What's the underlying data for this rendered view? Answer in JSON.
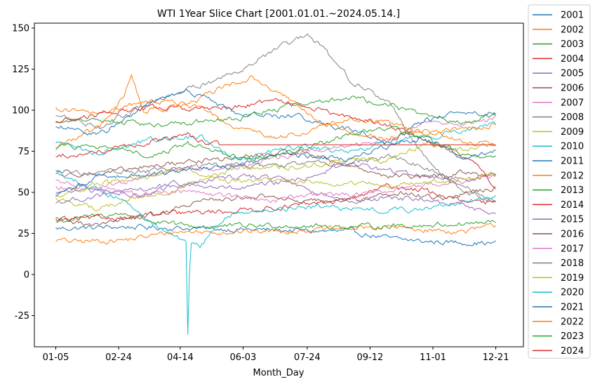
{
  "chart_data": {
    "type": "line",
    "title": "WTI 1Year Slice Chart [2001.01.01.~2024.05.14.]",
    "xlabel": "Month_Day",
    "ylabel": "",
    "x_ticks": [
      "01-05",
      "02-24",
      "04-14",
      "06-03",
      "07-24",
      "09-12",
      "11-01",
      "12-21"
    ],
    "x_tick_days": [
      5,
      55,
      104,
      154,
      205,
      255,
      305,
      355
    ],
    "xlim": [
      -12,
      377
    ],
    "ylim": [
      -44,
      153
    ],
    "y_ticks": [
      -25,
      0,
      25,
      50,
      75,
      100,
      125,
      150
    ],
    "grid": false,
    "legend_position": "outside-right",
    "series": [
      {
        "name": "2001",
        "color": "#1f77b4",
        "keypoints": [
          [
            5,
            28
          ],
          [
            60,
            29
          ],
          [
            120,
            28
          ],
          [
            180,
            27
          ],
          [
            240,
            26
          ],
          [
            270,
            22
          ],
          [
            300,
            20
          ],
          [
            355,
            19
          ]
        ]
      },
      {
        "name": "2002",
        "color": "#ff7f0e",
        "keypoints": [
          [
            5,
            21
          ],
          [
            20,
            20
          ],
          [
            60,
            21
          ],
          [
            100,
            26
          ],
          [
            150,
            26
          ],
          [
            210,
            27
          ],
          [
            270,
            29
          ],
          [
            300,
            27
          ],
          [
            330,
            26
          ],
          [
            355,
            30
          ]
        ]
      },
      {
        "name": "2003",
        "color": "#2ca02c",
        "keypoints": [
          [
            5,
            32
          ],
          [
            40,
            36
          ],
          [
            60,
            37
          ],
          [
            90,
            31
          ],
          [
            120,
            29
          ],
          [
            180,
            30
          ],
          [
            240,
            29
          ],
          [
            300,
            30
          ],
          [
            355,
            32
          ]
        ]
      },
      {
        "name": "2004",
        "color": "#d62728",
        "keypoints": [
          [
            5,
            33
          ],
          [
            60,
            35
          ],
          [
            100,
            37
          ],
          [
            150,
            39
          ],
          [
            200,
            42
          ],
          [
            240,
            46
          ],
          [
            270,
            54
          ],
          [
            300,
            51
          ],
          [
            330,
            44
          ],
          [
            355,
            43
          ]
        ]
      },
      {
        "name": "2005",
        "color": "#9467bd",
        "keypoints": [
          [
            5,
            44
          ],
          [
            60,
            50
          ],
          [
            100,
            55
          ],
          [
            150,
            52
          ],
          [
            200,
            58
          ],
          [
            240,
            68
          ],
          [
            270,
            63
          ],
          [
            300,
            60
          ],
          [
            330,
            58
          ],
          [
            355,
            61
          ]
        ]
      },
      {
        "name": "2006",
        "color": "#8c564b",
        "keypoints": [
          [
            5,
            63
          ],
          [
            40,
            61
          ],
          [
            100,
            68
          ],
          [
            150,
            71
          ],
          [
            200,
            75
          ],
          [
            240,
            66
          ],
          [
            270,
            60
          ],
          [
            300,
            59
          ],
          [
            330,
            62
          ],
          [
            355,
            61
          ]
        ]
      },
      {
        "name": "2007",
        "color": "#e377c2",
        "keypoints": [
          [
            5,
            56
          ],
          [
            40,
            53
          ],
          [
            100,
            64
          ],
          [
            150,
            66
          ],
          [
            200,
            74
          ],
          [
            240,
            78
          ],
          [
            270,
            82
          ],
          [
            300,
            93
          ],
          [
            330,
            91
          ],
          [
            355,
            96
          ]
        ]
      },
      {
        "name": "2008",
        "color": "#7f7f7f",
        "keypoints": [
          [
            5,
            97
          ],
          [
            40,
            90
          ],
          [
            80,
            104
          ],
          [
            130,
            118
          ],
          [
            160,
            128
          ],
          [
            185,
            139
          ],
          [
            205,
            145
          ],
          [
            215,
            140
          ],
          [
            240,
            118
          ],
          [
            270,
            105
          ],
          [
            300,
            70
          ],
          [
            330,
            50
          ],
          [
            355,
            44
          ]
        ]
      },
      {
        "name": "2009",
        "color": "#bcbd22",
        "keypoints": [
          [
            5,
            46
          ],
          [
            40,
            40
          ],
          [
            70,
            47
          ],
          [
            100,
            51
          ],
          [
            150,
            65
          ],
          [
            200,
            65
          ],
          [
            240,
            70
          ],
          [
            270,
            70
          ],
          [
            300,
            79
          ],
          [
            330,
            76
          ],
          [
            355,
            79
          ]
        ]
      },
      {
        "name": "2010",
        "color": "#17becf",
        "keypoints": [
          [
            5,
            81
          ],
          [
            40,
            74
          ],
          [
            80,
            82
          ],
          [
            120,
            84
          ],
          [
            150,
            70
          ],
          [
            200,
            78
          ],
          [
            240,
            74
          ],
          [
            270,
            80
          ],
          [
            300,
            84
          ],
          [
            330,
            88
          ],
          [
            355,
            91
          ]
        ]
      },
      {
        "name": "2011",
        "color": "#1f77b4",
        "keypoints": [
          [
            5,
            90
          ],
          [
            40,
            85
          ],
          [
            80,
            104
          ],
          [
            110,
            112
          ],
          [
            150,
            98
          ],
          [
            200,
            96
          ],
          [
            240,
            88
          ],
          [
            270,
            80
          ],
          [
            300,
            94
          ],
          [
            330,
            99
          ],
          [
            355,
            98
          ]
        ]
      },
      {
        "name": "2012",
        "color": "#ff7f0e",
        "keypoints": [
          [
            5,
            101
          ],
          [
            40,
            98
          ],
          [
            80,
            106
          ],
          [
            110,
            104
          ],
          [
            150,
            90
          ],
          [
            180,
            83
          ],
          [
            210,
            88
          ],
          [
            240,
            95
          ],
          [
            270,
            92
          ],
          [
            300,
            86
          ],
          [
            330,
            88
          ],
          [
            355,
            91
          ]
        ]
      },
      {
        "name": "2013",
        "color": "#2ca02c",
        "keypoints": [
          [
            5,
            93
          ],
          [
            40,
            95
          ],
          [
            80,
            91
          ],
          [
            110,
            92
          ],
          [
            150,
            95
          ],
          [
            200,
            104
          ],
          [
            240,
            108
          ],
          [
            270,
            103
          ],
          [
            300,
            97
          ],
          [
            330,
            93
          ],
          [
            355,
            98
          ]
        ]
      },
      {
        "name": "2014",
        "color": "#d62728",
        "keypoints": [
          [
            5,
            93
          ],
          [
            40,
            97
          ],
          [
            80,
            102
          ],
          [
            110,
            101
          ],
          [
            150,
            102
          ],
          [
            180,
            106
          ],
          [
            200,
            103
          ],
          [
            240,
            95
          ],
          [
            270,
            91
          ],
          [
            300,
            81
          ],
          [
            330,
            72
          ],
          [
            355,
            54
          ]
        ]
      },
      {
        "name": "2015",
        "color": "#9467bd",
        "keypoints": [
          [
            5,
            50
          ],
          [
            40,
            51
          ],
          [
            70,
            48
          ],
          [
            110,
            56
          ],
          [
            150,
            60
          ],
          [
            180,
            59
          ],
          [
            210,
            50
          ],
          [
            240,
            45
          ],
          [
            270,
            46
          ],
          [
            300,
            46
          ],
          [
            330,
            42
          ],
          [
            355,
            37
          ]
        ]
      },
      {
        "name": "2016",
        "color": "#8c564b",
        "keypoints": [
          [
            5,
            35
          ],
          [
            30,
            30
          ],
          [
            60,
            33
          ],
          [
            90,
            38
          ],
          [
            120,
            44
          ],
          [
            160,
            48
          ],
          [
            190,
            46
          ],
          [
            220,
            44
          ],
          [
            250,
            46
          ],
          [
            280,
            50
          ],
          [
            310,
            46
          ],
          [
            355,
            53
          ]
        ]
      },
      {
        "name": "2017",
        "color": "#e377c2",
        "keypoints": [
          [
            5,
            53
          ],
          [
            40,
            53
          ],
          [
            80,
            48
          ],
          [
            110,
            51
          ],
          [
            150,
            47
          ],
          [
            180,
            45
          ],
          [
            210,
            49
          ],
          [
            240,
            48
          ],
          [
            270,
            51
          ],
          [
            300,
            55
          ],
          [
            330,
            57
          ],
          [
            355,
            60
          ]
        ]
      },
      {
        "name": "2018",
        "color": "#7f7f7f",
        "keypoints": [
          [
            5,
            62
          ],
          [
            40,
            62
          ],
          [
            80,
            63
          ],
          [
            110,
            66
          ],
          [
            150,
            67
          ],
          [
            180,
            66
          ],
          [
            210,
            68
          ],
          [
            240,
            68
          ],
          [
            270,
            72
          ],
          [
            300,
            65
          ],
          [
            330,
            53
          ],
          [
            355,
            45
          ]
        ]
      },
      {
        "name": "2019",
        "color": "#bcbd22",
        "keypoints": [
          [
            5,
            48
          ],
          [
            40,
            55
          ],
          [
            80,
            60
          ],
          [
            110,
            64
          ],
          [
            140,
            57
          ],
          [
            180,
            57
          ],
          [
            210,
            56
          ],
          [
            240,
            55
          ],
          [
            270,
            54
          ],
          [
            300,
            56
          ],
          [
            330,
            58
          ],
          [
            355,
            61
          ]
        ]
      },
      {
        "name": "2020",
        "color": "#17becf",
        "keypoints": [
          [
            5,
            62
          ],
          [
            30,
            53
          ],
          [
            60,
            46
          ],
          [
            80,
            32
          ],
          [
            100,
            22
          ],
          [
            109,
            20
          ],
          [
            110,
            -37
          ],
          [
            112,
            18
          ],
          [
            120,
            17
          ],
          [
            140,
            36
          ],
          [
            180,
            40
          ],
          [
            210,
            41
          ],
          [
            240,
            40
          ],
          [
            270,
            39
          ],
          [
            300,
            40
          ],
          [
            330,
            45
          ],
          [
            355,
            48
          ]
        ]
      },
      {
        "name": "2021",
        "color": "#1f77b4",
        "keypoints": [
          [
            5,
            48
          ],
          [
            40,
            60
          ],
          [
            80,
            61
          ],
          [
            110,
            63
          ],
          [
            150,
            66
          ],
          [
            180,
            73
          ],
          [
            210,
            72
          ],
          [
            240,
            70
          ],
          [
            270,
            78
          ],
          [
            300,
            83
          ],
          [
            330,
            70
          ],
          [
            355,
            76
          ]
        ]
      },
      {
        "name": "2022",
        "color": "#ff7f0e",
        "keypoints": [
          [
            5,
            77
          ],
          [
            40,
            90
          ],
          [
            60,
            110
          ],
          [
            65,
            122
          ],
          [
            75,
            100
          ],
          [
            110,
            103
          ],
          [
            140,
            115
          ],
          [
            160,
            120
          ],
          [
            190,
            107
          ],
          [
            210,
            96
          ],
          [
            240,
            86
          ],
          [
            270,
            83
          ],
          [
            300,
            88
          ],
          [
            330,
            80
          ],
          [
            355,
            80
          ]
        ]
      },
      {
        "name": "2023",
        "color": "#2ca02c",
        "keypoints": [
          [
            5,
            77
          ],
          [
            40,
            78
          ],
          [
            80,
            72
          ],
          [
            110,
            80
          ],
          [
            150,
            71
          ],
          [
            180,
            72
          ],
          [
            210,
            78
          ],
          [
            240,
            86
          ],
          [
            270,
            90
          ],
          [
            300,
            82
          ],
          [
            330,
            73
          ],
          [
            355,
            72
          ]
        ]
      },
      {
        "name": "2024",
        "color": "#d62728",
        "keypoints": [
          [
            5,
            72
          ],
          [
            30,
            74
          ],
          [
            60,
            78
          ],
          [
            90,
            82
          ],
          [
            110,
            85
          ],
          [
            125,
            80
          ],
          [
            134,
            79
          ],
          [
            355,
            79
          ]
        ]
      }
    ]
  }
}
